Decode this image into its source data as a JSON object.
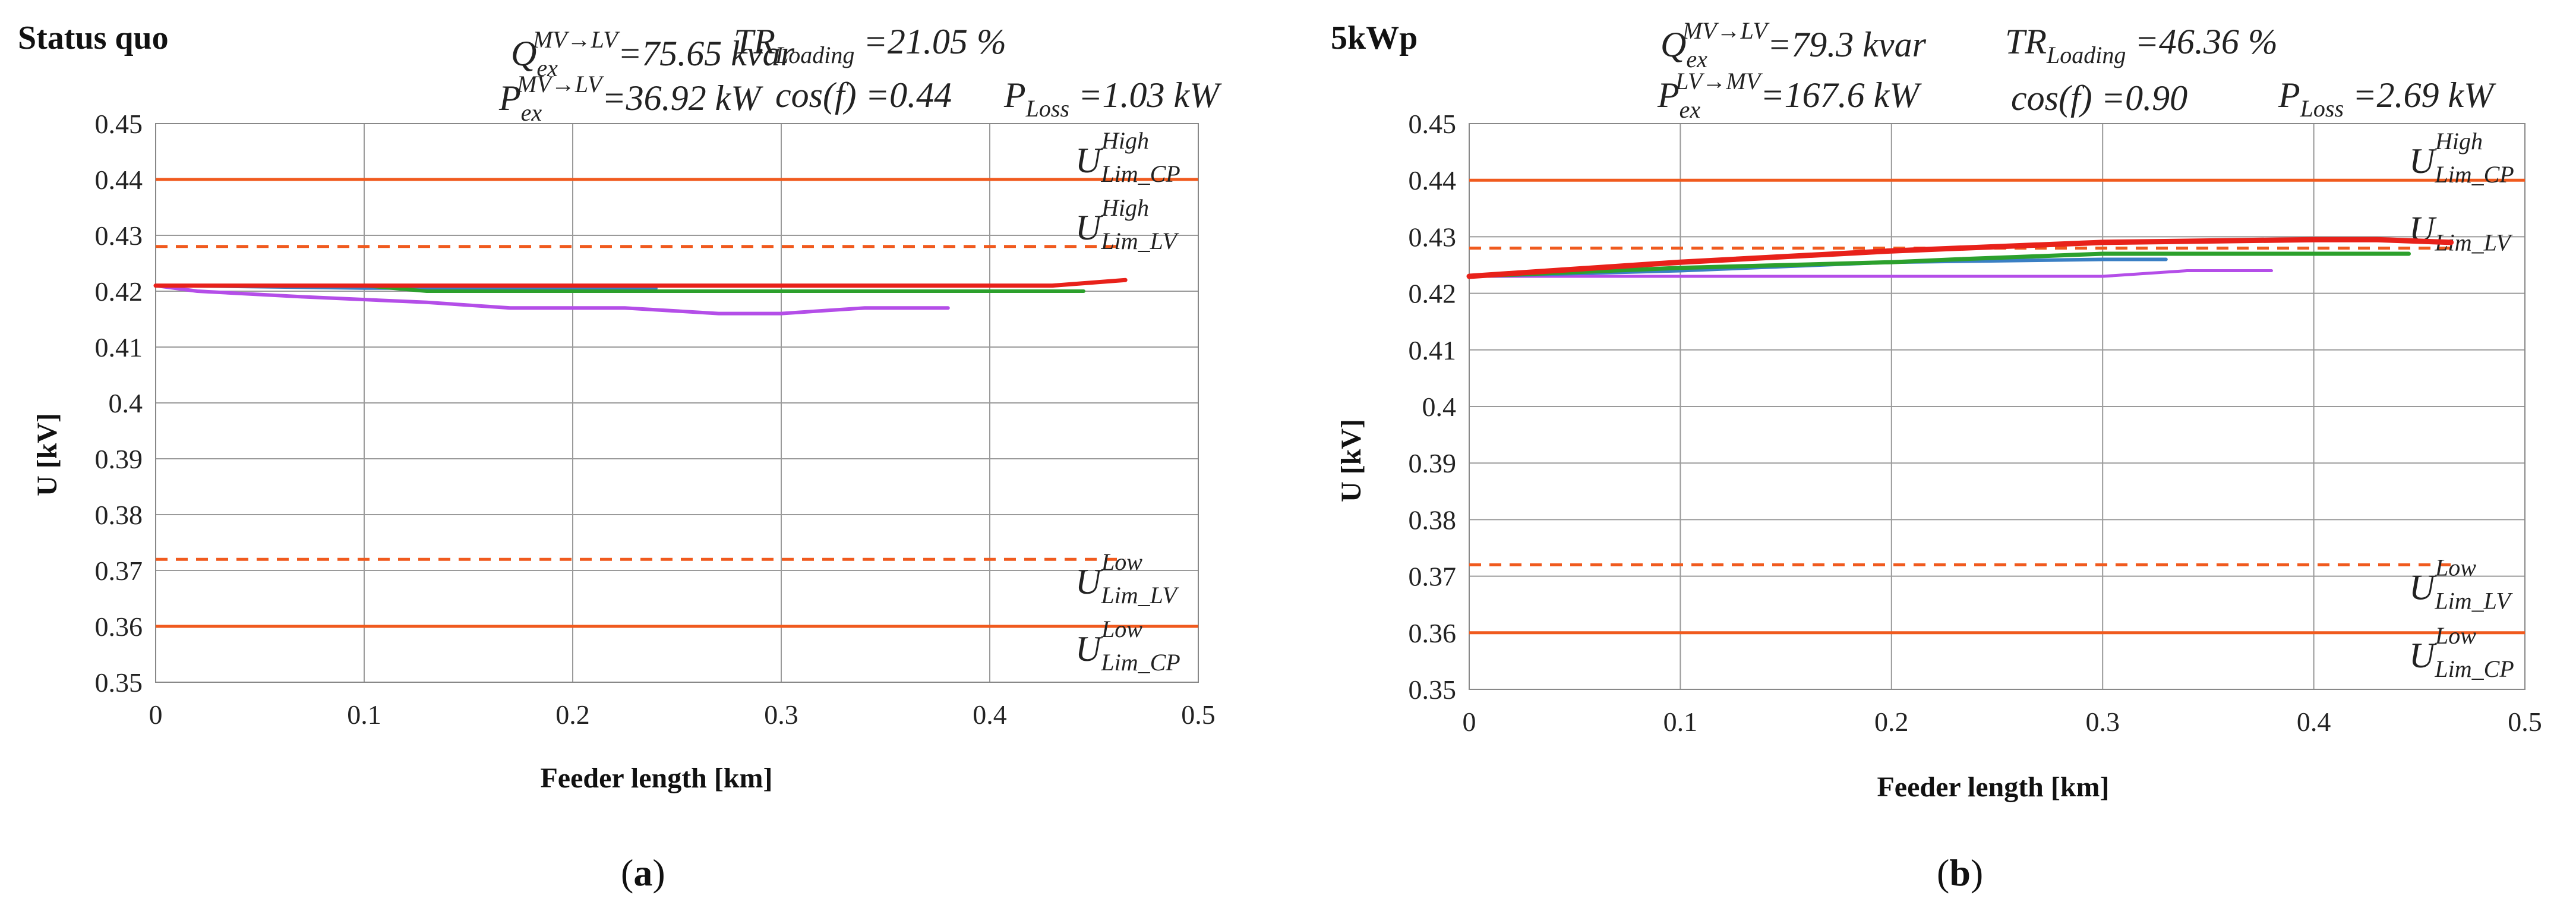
{
  "chart_data": [
    {
      "type": "line",
      "title": "Status quo",
      "panel_label": "a",
      "xlabel": "Feeder length [km]",
      "ylabel": "U [kV]",
      "xlim": [
        0,
        0.5
      ],
      "ylim": [
        0.35,
        0.45
      ],
      "xticks": [
        "0",
        "0.1",
        "0.2",
        "0.3",
        "0.4",
        "0.5"
      ],
      "yticks": [
        "0.35",
        "0.36",
        "0.37",
        "0.38",
        "0.39",
        "0.4",
        "0.41",
        "0.42",
        "0.43",
        "0.44",
        "0.45"
      ],
      "grid": true,
      "annotations": {
        "q_main": "Q",
        "q_sub": "ex",
        "q_sup": "MV→LV",
        "q_val": "=75.65 kvar",
        "p_main": "P",
        "p_sub": "ex",
        "p_sup": "MV→LV",
        "p_val": "=36.92 kW",
        "tr_main": "TR",
        "tr_sub": "Loading",
        "tr_val": " =21.05 %",
        "cos": "cos(f) =0.44",
        "ploss_main": "P",
        "ploss_sub": "Loss",
        "ploss_val": " =1.03 kW"
      },
      "limits": [
        {
          "label_main": "U",
          "label_sub": "Lim_CP",
          "label_sup": "High",
          "value": 0.44,
          "style": "solid",
          "color": "#f05a1e"
        },
        {
          "label_main": "U",
          "label_sub": "Lim_LV",
          "label_sup": "High",
          "value": 0.428,
          "style": "dashed",
          "color": "#f05a1e"
        },
        {
          "label_main": "U",
          "label_sub": "Lim_LV",
          "label_sup": "Low",
          "value": 0.372,
          "style": "dashed",
          "color": "#f05a1e"
        },
        {
          "label_main": "U",
          "label_sub": "Lim_CP",
          "label_sup": "Low",
          "value": 0.36,
          "style": "solid",
          "color": "#f05a1e"
        }
      ],
      "series": [
        {
          "color": "#e8211a",
          "width": 7,
          "x": [
            0,
            0.1,
            0.2,
            0.3,
            0.38,
            0.43,
            0.465
          ],
          "y": [
            0.421,
            0.421,
            0.421,
            0.421,
            0.421,
            0.421,
            0.422
          ]
        },
        {
          "color": "#2ca02c",
          "width": 6,
          "x": [
            0,
            0.1,
            0.13,
            0.2,
            0.3,
            0.4,
            0.445
          ],
          "y": [
            0.421,
            0.421,
            0.42,
            0.42,
            0.42,
            0.42,
            0.42
          ]
        },
        {
          "color": "#3a7fc4",
          "width": 5,
          "x": [
            0,
            0.1,
            0.2,
            0.24
          ],
          "y": [
            0.421,
            0.4205,
            0.4205,
            0.4205
          ]
        },
        {
          "color": "#b44ee8",
          "width": 6,
          "x": [
            0,
            0.02,
            0.07,
            0.13,
            0.17,
            0.225,
            0.27,
            0.3,
            0.34,
            0.38
          ],
          "y": [
            0.421,
            0.42,
            0.419,
            0.418,
            0.417,
            0.417,
            0.416,
            0.416,
            0.417,
            0.417
          ]
        }
      ]
    },
    {
      "type": "line",
      "title": "5kWp",
      "panel_label": "b",
      "xlabel": "Feeder length [km]",
      "ylabel": "U [kV]",
      "xlim": [
        0,
        0.5
      ],
      "ylim": [
        0.35,
        0.45
      ],
      "xticks": [
        "0",
        "0.1",
        "0.2",
        "0.3",
        "0.4",
        "0.5"
      ],
      "yticks": [
        "0.35",
        "0.36",
        "0.37",
        "0.38",
        "0.39",
        "0.4",
        "0.41",
        "0.42",
        "0.43",
        "0.44",
        "0.45"
      ],
      "grid": true,
      "annotations": {
        "q_main": "Q",
        "q_sub": "ex",
        "q_sup": "MV→LV",
        "q_val": "=79.3 kvar",
        "p_main": "P",
        "p_sub": "ex",
        "p_sup": "LV→MV",
        "p_val": "=167.6 kW",
        "tr_main": "TR",
        "tr_sub": "Loading",
        "tr_val": " =46.36 %",
        "cos": "cos(f) =0.90",
        "ploss_main": "P",
        "ploss_sub": "Loss",
        "ploss_val": " =2.69 kW"
      },
      "limits": [
        {
          "label_main": "U",
          "label_sub": "Lim_CP",
          "label_sup": "High",
          "value": 0.44,
          "style": "solid",
          "color": "#f05a1e"
        },
        {
          "label_main": "U",
          "label_sub": "Lim_LV",
          "label_sup": "",
          "value": 0.428,
          "style": "dashed",
          "color": "#f05a1e"
        },
        {
          "label_main": "U",
          "label_sub": "Lim_LV",
          "label_sup": "Low",
          "value": 0.372,
          "style": "dashed",
          "color": "#f05a1e"
        },
        {
          "label_main": "U",
          "label_sub": "Lim_CP",
          "label_sup": "Low",
          "value": 0.36,
          "style": "solid",
          "color": "#f05a1e"
        }
      ],
      "series": [
        {
          "color": "#e8211a",
          "width": 9,
          "x": [
            0,
            0.1,
            0.2,
            0.3,
            0.4,
            0.43,
            0.465
          ],
          "y": [
            0.423,
            0.4255,
            0.4275,
            0.429,
            0.4295,
            0.4295,
            0.429
          ]
        },
        {
          "color": "#2ca02c",
          "width": 7,
          "x": [
            0,
            0.1,
            0.2,
            0.23,
            0.3,
            0.4,
            0.445
          ],
          "y": [
            0.423,
            0.4245,
            0.4255,
            0.426,
            0.427,
            0.427,
            0.427
          ]
        },
        {
          "color": "#3a7fc4",
          "width": 6,
          "x": [
            0,
            0.1,
            0.2,
            0.3,
            0.33
          ],
          "y": [
            0.423,
            0.424,
            0.4255,
            0.426,
            0.426
          ]
        },
        {
          "color": "#b44ee8",
          "width": 5,
          "x": [
            0,
            0.1,
            0.2,
            0.3,
            0.34,
            0.38
          ],
          "y": [
            0.423,
            0.423,
            0.423,
            0.423,
            0.424,
            0.424
          ]
        }
      ]
    }
  ]
}
